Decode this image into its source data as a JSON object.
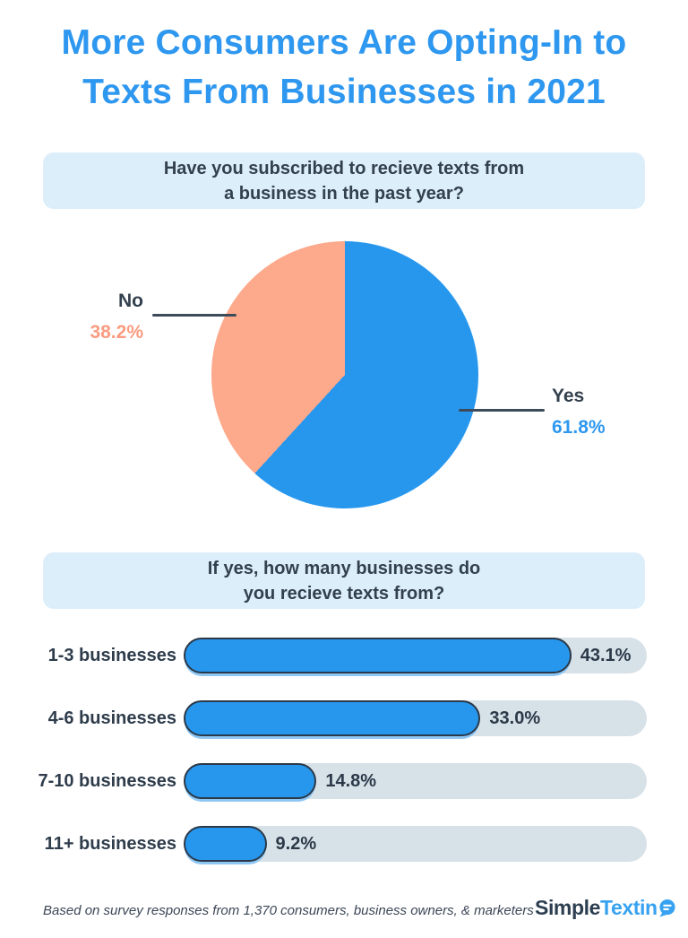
{
  "title": "More Consumers Are Opting-In to\nTexts From Businesses in 2021",
  "questions": {
    "q1": "Have you subscribed to recieve texts from\na business in the past year?",
    "q2": "If yes, how many businesses do\nyou recieve texts from?"
  },
  "chart_data": [
    {
      "type": "pie",
      "title": "Have you subscribed to recieve texts from a business in the past year?",
      "slices": [
        {
          "label": "Yes",
          "value": 61.8,
          "display": "61.8%",
          "color": "#2797ee"
        },
        {
          "label": "No",
          "value": 38.2,
          "display": "38.2%",
          "color": "#fda98c"
        }
      ],
      "start_angle_deg": 0,
      "direction": "clockwise",
      "labels_position": "outside-with-leader-lines"
    },
    {
      "type": "bar",
      "title": "If yes, how many businesses do you recieve texts from?",
      "orientation": "horizontal",
      "categories": [
        "1-3 businesses",
        "4-6 businesses",
        "7-10 businesses",
        "11+ businesses"
      ],
      "values": [
        43.1,
        33.0,
        14.8,
        9.2
      ],
      "value_suffix": "%",
      "axis_max": 51.5,
      "bar_color": "#2797ee",
      "track_color": "#d7e1e8",
      "grid": false,
      "value_labels": "right-of-bar"
    }
  ],
  "footer": {
    "note": "Based on survey responses from 1,370 consumers, business owners, & marketers",
    "logo": {
      "part1": "Simple",
      "part2": "Textin",
      "icon": "chat-bubble-icon"
    }
  },
  "colors": {
    "title_text": "#2e97ef",
    "heading_text": "#33404d",
    "question_box_bg": "#ddeefb",
    "pie_yes": "#2797ee",
    "pie_no": "#fda98c",
    "no_value_text": "#fa9c81",
    "yes_value_text": "#2e98f0",
    "bar_fill": "#2797ee",
    "bar_track": "#d7e1e8",
    "bar_outline": "#2b3948",
    "leader_line": "#3d4a59",
    "logo_dark": "#2c3e50",
    "logo_blue": "#37a2f1"
  }
}
